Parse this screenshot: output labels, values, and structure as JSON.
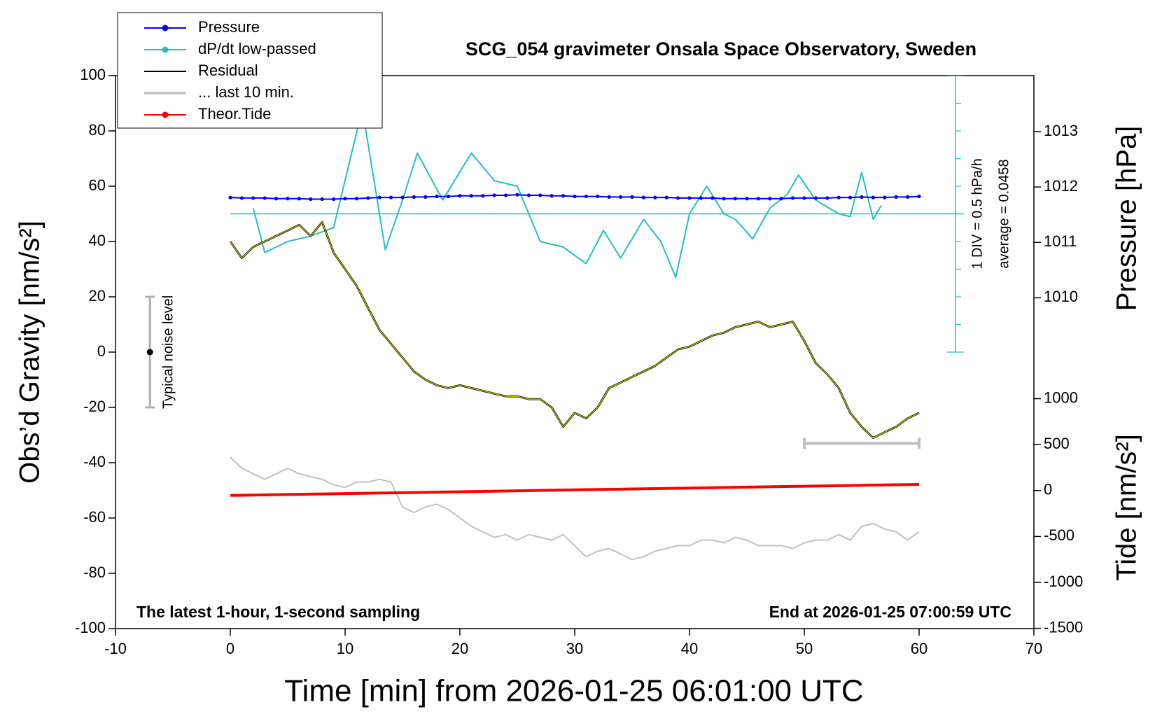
{
  "chart_data": {
    "type": "line",
    "title": "SCG_054 gravimeter Onsala Space Observatory, Sweden",
    "xlabel": "Time [min] from 2026-01-25 06:01:00 UTC",
    "ylabel": "Obs’d Gravity [nm/s²]",
    "y2label": "Pressure [hPa]",
    "y3label": "Tide [nm/s²]",
    "xlim": [
      -10,
      70
    ],
    "xticks": [
      -10,
      0,
      10,
      20,
      30,
      40,
      50,
      60,
      70
    ],
    "ylim": [
      -100,
      100
    ],
    "yticks": [
      -100,
      -80,
      -60,
      -40,
      -20,
      0,
      20,
      40,
      60,
      80,
      100
    ],
    "y2lim": [
      1004.03,
      1014.01
    ],
    "y2ticks": [
      1010,
      1011,
      1012,
      1013
    ],
    "y3lim": [
      -1503,
      4517
    ],
    "y3ticks": [
      -1500,
      -1000,
      -500,
      0,
      500,
      1000
    ],
    "y4lim": [
      -7.4542,
      2.5458
    ],
    "legend": "upper left",
    "series": [
      {
        "name": "Pressure",
        "color": "#0000ff",
        "axis": "y2",
        "markers": true,
        "legend_dot": true,
        "x": [
          0,
          1,
          2,
          3,
          4,
          5,
          6,
          7,
          8,
          9,
          10,
          11,
          12,
          13,
          14,
          15,
          16,
          17,
          18,
          19,
          20,
          21,
          22,
          23,
          24,
          25,
          26,
          27,
          28,
          29,
          30,
          31,
          32,
          33,
          34,
          35,
          36,
          37,
          38,
          39,
          40,
          41,
          42,
          43,
          44,
          45,
          46,
          47,
          48,
          49,
          50,
          51,
          52,
          53,
          54,
          55,
          56,
          57,
          58,
          59,
          60
        ],
        "values": [
          1011.81,
          1011.8,
          1011.8,
          1011.8,
          1011.79,
          1011.79,
          1011.79,
          1011.78,
          1011.78,
          1011.78,
          1011.79,
          1011.79,
          1011.8,
          1011.81,
          1011.81,
          1011.81,
          1011.82,
          1011.82,
          1011.83,
          1011.83,
          1011.84,
          1011.84,
          1011.84,
          1011.85,
          1011.85,
          1011.86,
          1011.85,
          1011.85,
          1011.84,
          1011.84,
          1011.83,
          1011.83,
          1011.83,
          1011.82,
          1011.82,
          1011.82,
          1011.81,
          1011.81,
          1011.81,
          1011.8,
          1011.8,
          1011.8,
          1011.8,
          1011.79,
          1011.79,
          1011.79,
          1011.79,
          1011.79,
          1011.79,
          1011.8,
          1011.8,
          1011.8,
          1011.8,
          1011.81,
          1011.81,
          1011.82,
          1011.81,
          1011.81,
          1011.82,
          1011.82,
          1011.83
        ]
      },
      {
        "name": "dP/dt low-passed",
        "color": "#20c0c0",
        "axis": "y4",
        "legend_dot": true,
        "x": [
          2,
          3,
          5,
          7,
          9,
          11.5,
          13.5,
          15,
          16.3,
          18.5,
          21,
          23,
          25,
          27,
          29,
          31,
          32.5,
          34,
          36,
          37.5,
          38.8,
          40,
          41.5,
          43,
          44,
          45.5,
          47,
          48.5,
          49.5,
          51,
          53,
          54,
          55,
          56,
          56.7
        ],
        "values": [
          0.1458,
          -0.6542,
          -0.4542,
          -0.3542,
          -0.2042,
          1.9458,
          -0.6042,
          0.2958,
          1.1458,
          0.2958,
          1.1458,
          0.6458,
          0.5458,
          -0.4542,
          -0.5542,
          -0.8542,
          -0.2542,
          -0.7542,
          -0.0542,
          -0.4542,
          -1.1042,
          0.0458,
          0.5458,
          0.0458,
          -0.0542,
          -0.4042,
          0.1458,
          0.3958,
          0.7458,
          0.2958,
          0.0458,
          -0.0042,
          0.7958,
          -0.0542,
          0.1958
        ]
      },
      {
        "name": "Residual",
        "color": "#000000",
        "overlay_color": "#c8c800",
        "x": [
          0,
          1,
          2,
          3,
          4,
          5,
          6,
          7,
          8,
          9,
          10,
          11,
          12,
          13,
          14,
          15,
          16,
          17,
          18,
          19,
          20,
          21,
          22,
          23,
          24,
          25,
          26,
          27,
          28,
          29,
          30,
          31,
          32,
          33,
          34,
          35,
          36,
          37,
          38,
          39,
          40,
          41,
          42,
          43,
          44,
          45,
          46,
          47,
          48,
          49,
          50,
          51,
          52,
          53,
          54,
          55,
          56,
          57,
          58,
          59,
          60
        ],
        "values": [
          40,
          34,
          38,
          40,
          42,
          44,
          46,
          42,
          47,
          36,
          30,
          24,
          16,
          8,
          3,
          -2,
          -7,
          -10,
          -12,
          -13,
          -12,
          -13,
          -14,
          -15,
          -16,
          -16,
          -17,
          -17,
          -20,
          -27,
          -22,
          -24,
          -20,
          -13,
          -11,
          -9,
          -7,
          -5,
          -2,
          1,
          2,
          4,
          6,
          7,
          9,
          10,
          11,
          9,
          10,
          11,
          4,
          -4,
          -8,
          -13,
          -22,
          -27,
          -31,
          -29,
          -27,
          -24,
          -22
        ]
      },
      {
        "name": "... last 10 min.",
        "color": "#c0c0c0",
        "x": [
          0,
          1,
          2,
          3,
          4,
          5,
          6,
          7,
          8,
          9,
          10,
          11,
          12,
          13,
          14,
          15,
          16,
          17,
          18,
          19,
          20,
          21,
          22,
          23,
          24,
          25,
          26,
          27,
          28,
          29,
          30,
          31,
          32,
          33,
          34,
          35,
          36,
          37,
          38,
          39,
          40,
          41,
          42,
          43,
          44,
          45,
          46,
          47,
          48,
          49,
          50,
          51,
          52,
          53,
          54,
          55,
          56,
          57,
          58,
          59,
          60
        ],
        "values": [
          -38,
          -42,
          -44,
          -46,
          -44,
          -42,
          -44,
          -45,
          -46,
          -48,
          -49,
          -47,
          -47,
          -46,
          -47,
          -56,
          -58,
          -56,
          -55,
          -57,
          -60,
          -63,
          -65,
          -67,
          -66,
          -68,
          -66,
          -67,
          -68,
          -66,
          -70,
          -74,
          -72,
          -71,
          -73,
          -75,
          -74,
          -72,
          -71,
          -70,
          -70,
          -68,
          -68,
          -69,
          -67,
          -68,
          -70,
          -70,
          -70,
          -71,
          -69,
          -68,
          -68,
          -66,
          -68,
          -63,
          -62,
          -64,
          -65,
          -68,
          -65
        ]
      },
      {
        "name": "Theor.Tide",
        "color": "#ff0000",
        "axis": "y3",
        "legend_dot": true,
        "x": [
          0,
          10,
          20,
          30,
          40,
          50,
          60
        ],
        "values": [
          -53,
          -33,
          -13,
          7,
          27,
          47,
          67
        ]
      }
    ],
    "last10_bar": {
      "x": [
        50,
        60
      ],
      "value": -33
    },
    "noise_level": {
      "label": "Typical noise level",
      "x": -7,
      "value": 0,
      "error": 20
    },
    "dpdt_scale": {
      "label": "1 DIV = 0.5 hPa/h",
      "average_label": "average = 0.0458",
      "average": 0.0458
    },
    "annotations": [
      "The latest 1-hour, 1-second sampling",
      "End at 2026-01-25 07:00:59 UTC"
    ]
  }
}
